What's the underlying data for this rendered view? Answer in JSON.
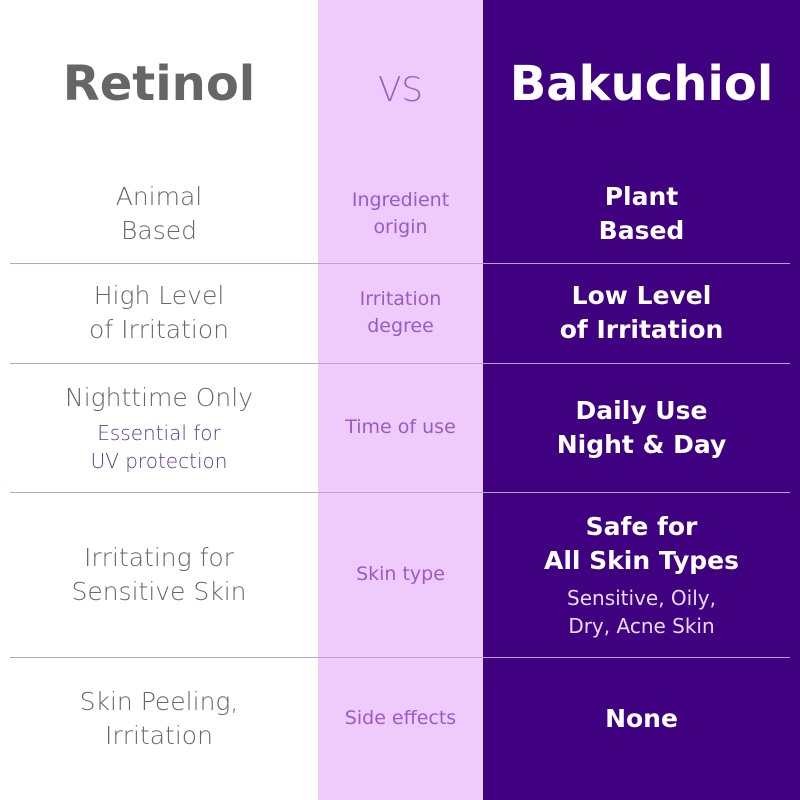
{
  "header": {
    "left_title": "Retinol",
    "middle": "VS",
    "right_title": "Bakuchiol"
  },
  "colors": {
    "left_bg": "#ffffff",
    "middle_bg": "#eecbfb",
    "right_bg": "#3f0180",
    "middle_text": "#9a5bc6"
  },
  "rows": [
    {
      "retinol": "Animal\nBased",
      "criterion": "Ingredient\norigin",
      "bakuchiol": "Plant\nBased"
    },
    {
      "retinol": "High Level\nof Irritation",
      "criterion": "Irritation\ndegree",
      "bakuchiol": "Low Level\nof Irritation"
    },
    {
      "retinol": "Nighttime Only",
      "retinol_note": "Essential for\nUV protection",
      "criterion": "Time of use",
      "bakuchiol": "Daily Use\nNight & Day"
    },
    {
      "retinol": "Irritating for\nSensitive Skin",
      "criterion": "Skin type",
      "bakuchiol": "Safe for\nAll Skin Types",
      "bakuchiol_note": "Sensitive, Oily,\nDry, Acne Skin"
    },
    {
      "retinol": "Skin Peeling,\nIrritation",
      "criterion": "Side effects",
      "bakuchiol": "None"
    }
  ]
}
